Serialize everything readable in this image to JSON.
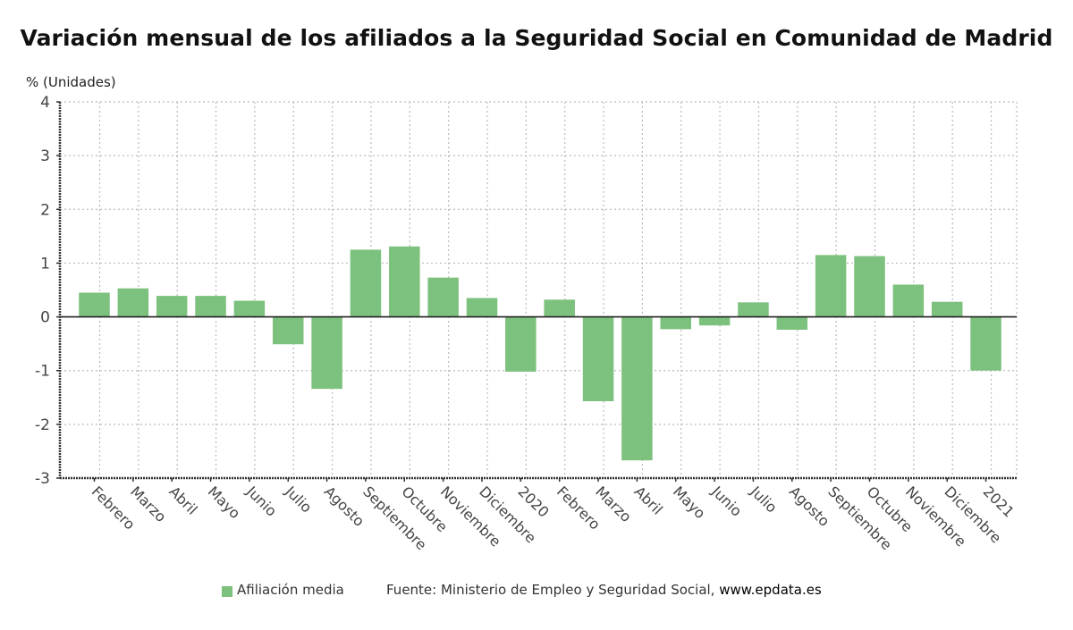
{
  "chart_data": {
    "type": "bar",
    "title": "Variación mensual de los afiliados a la Seguridad Social en Comunidad de Madrid",
    "ylabel": "% (Unidades)",
    "xlabel": "",
    "ylim": [
      -3,
      4
    ],
    "yticks": [
      4,
      3,
      2,
      1,
      0,
      -1,
      -2,
      -3
    ],
    "grid": true,
    "legend_position": "bottom",
    "categories": [
      "Febrero",
      "Marzo",
      "Abril",
      "Mayo",
      "Junio",
      "Julio",
      "Agosto",
      "Septiembre",
      "Octubre",
      "Noviembre",
      "Diciembre",
      "2020",
      "Febrero",
      "Marzo",
      "Abril",
      "Mayo",
      "Junio",
      "Julio",
      "Agosto",
      "Septiembre",
      "Octubre",
      "Noviembre",
      "Diciembre",
      "2021"
    ],
    "series": [
      {
        "name": "Afiliación media",
        "color": "#7dc17e",
        "values": [
          0.45,
          0.53,
          0.39,
          0.39,
          0.3,
          -0.51,
          -1.34,
          1.25,
          1.31,
          0.73,
          0.35,
          -1.02,
          0.32,
          -1.57,
          -2.67,
          -0.23,
          -0.16,
          0.27,
          -0.24,
          1.15,
          1.13,
          0.6,
          0.28,
          -1.0
        ]
      }
    ],
    "source": "Fuente: Ministerio de Empleo y Seguridad Social,",
    "source_site": "www.epdata.es"
  },
  "colors": {
    "bar": "#7dc17e",
    "zero_line": "#222222",
    "grid": "#bbbbbb"
  }
}
